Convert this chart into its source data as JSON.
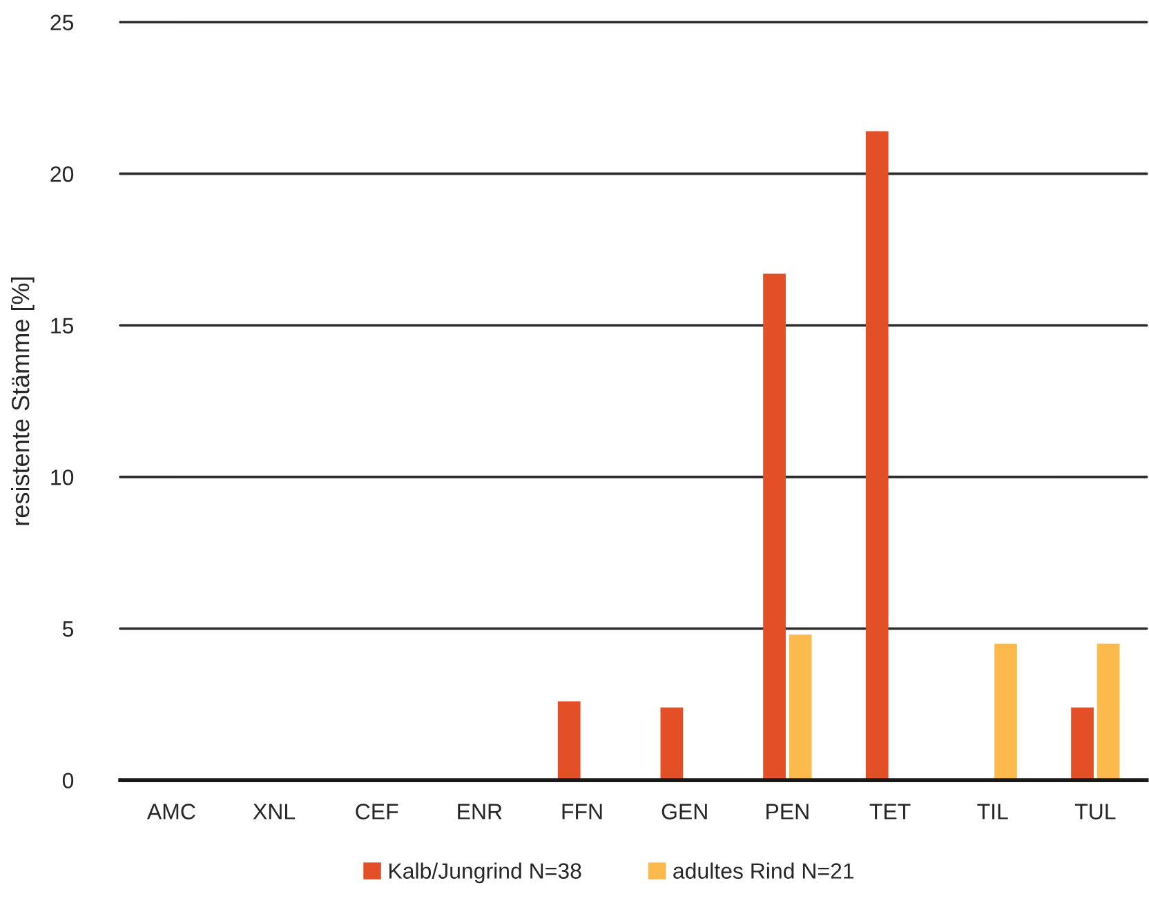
{
  "chart_data": {
    "type": "bar",
    "ylabel": "resistente Stämme [%]",
    "categories": [
      "AMC",
      "XNL",
      "CEF",
      "ENR",
      "FFN",
      "GEN",
      "PEN",
      "TET",
      "TIL",
      "TUL"
    ],
    "series": [
      {
        "name": "Kalb/Jungrind N=38",
        "color": "#e34f26",
        "values": [
          0,
          0,
          0,
          0,
          2.6,
          2.4,
          16.7,
          21.4,
          0,
          2.4
        ]
      },
      {
        "name": "adultes Rind N=21",
        "color": "#fdba4c",
        "values": [
          0,
          0,
          0,
          0,
          0,
          0,
          4.8,
          0,
          4.5,
          4.5
        ]
      }
    ],
    "ylim": [
      0,
      25
    ],
    "yticks": [
      0,
      5,
      10,
      15,
      20,
      25
    ],
    "grid": "y",
    "legend": "bottom"
  }
}
